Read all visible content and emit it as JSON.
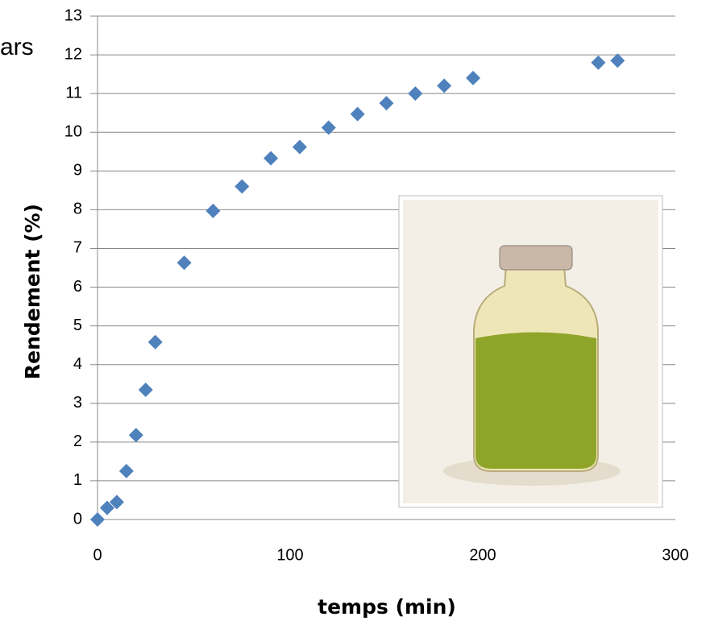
{
  "chart_data": {
    "type": "scatter",
    "annotation": "ars",
    "x_label": "temps (min)",
    "y_label": "Rendement (%)",
    "x": [
      0,
      5,
      10,
      15,
      20,
      25,
      30,
      45,
      60,
      75,
      90,
      105,
      120,
      135,
      150,
      165,
      180,
      195,
      260,
      270
    ],
    "values": [
      0,
      0.3,
      0.45,
      1.25,
      2.18,
      3.35,
      4.58,
      6.63,
      7.97,
      8.6,
      9.33,
      9.62,
      10.12,
      10.47,
      10.75,
      11.0,
      11.2,
      11.4,
      11.8,
      11.85
    ],
    "color": "#4f81bd",
    "xlim": [
      0,
      300
    ],
    "xticks": [
      0,
      100,
      200,
      300
    ],
    "ylim": [
      0,
      13
    ],
    "yticks": [
      0,
      1,
      2,
      3,
      4,
      5,
      6,
      7,
      8,
      9,
      10,
      11,
      12,
      13
    ],
    "grid": true
  }
}
